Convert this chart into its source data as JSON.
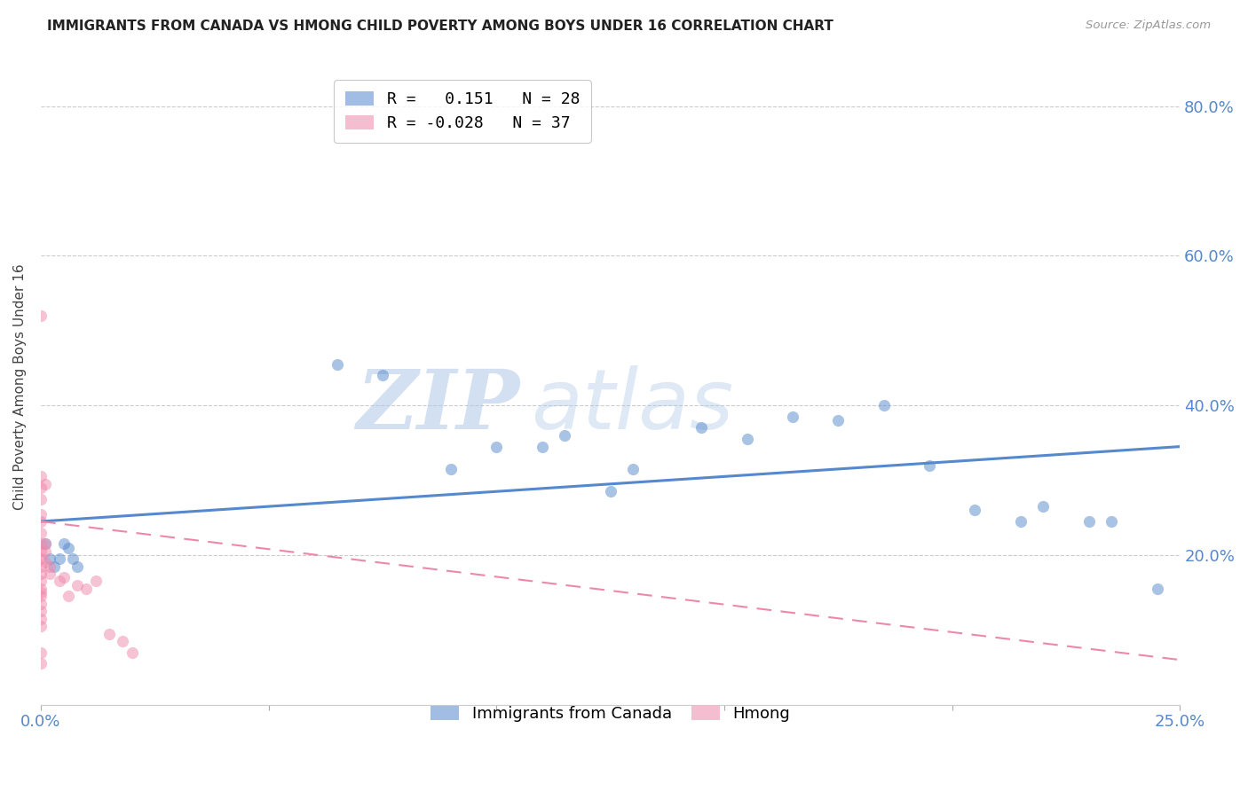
{
  "title": "IMMIGRANTS FROM CANADA VS HMONG CHILD POVERTY AMONG BOYS UNDER 16 CORRELATION CHART",
  "source": "Source: ZipAtlas.com",
  "ylabel": "Child Poverty Among Boys Under 16",
  "xlim": [
    0.0,
    0.25
  ],
  "ylim": [
    0.0,
    0.85
  ],
  "xticks": [
    0.0,
    0.05,
    0.1,
    0.15,
    0.2,
    0.25
  ],
  "yticks": [
    0.0,
    0.2,
    0.4,
    0.6,
    0.8
  ],
  "xticklabels": [
    "0.0%",
    "",
    "",
    "",
    "",
    "25.0%"
  ],
  "yticklabels": [
    "",
    "20.0%",
    "40.0%",
    "60.0%",
    "80.0%"
  ],
  "legend_entries": [
    {
      "label": "R =   0.151   N = 28",
      "color": "#6699cc"
    },
    {
      "label": "R = -0.028   N = 37",
      "color": "#ee88aa"
    }
  ],
  "canada_x": [
    0.001,
    0.002,
    0.003,
    0.004,
    0.005,
    0.006,
    0.007,
    0.008,
    0.065,
    0.075,
    0.09,
    0.1,
    0.11,
    0.115,
    0.125,
    0.13,
    0.145,
    0.155,
    0.165,
    0.175,
    0.185,
    0.195,
    0.205,
    0.215,
    0.22,
    0.23,
    0.235,
    0.245
  ],
  "canada_y": [
    0.215,
    0.195,
    0.185,
    0.195,
    0.215,
    0.21,
    0.195,
    0.185,
    0.455,
    0.44,
    0.315,
    0.345,
    0.345,
    0.36,
    0.285,
    0.315,
    0.37,
    0.355,
    0.385,
    0.38,
    0.4,
    0.32,
    0.26,
    0.245,
    0.265,
    0.245,
    0.245,
    0.155
  ],
  "hmong_x": [
    0.0,
    0.0,
    0.0,
    0.0,
    0.0,
    0.0,
    0.0,
    0.0,
    0.0,
    0.0,
    0.0,
    0.0,
    0.0,
    0.0,
    0.0,
    0.0,
    0.0,
    0.0,
    0.0,
    0.0,
    0.0,
    0.0,
    0.001,
    0.001,
    0.001,
    0.001,
    0.002,
    0.002,
    0.004,
    0.005,
    0.006,
    0.008,
    0.01,
    0.012,
    0.015,
    0.018,
    0.02
  ],
  "hmong_y": [
    0.52,
    0.305,
    0.29,
    0.275,
    0.255,
    0.245,
    0.23,
    0.215,
    0.205,
    0.195,
    0.185,
    0.175,
    0.165,
    0.155,
    0.15,
    0.145,
    0.135,
    0.125,
    0.115,
    0.105,
    0.07,
    0.055,
    0.295,
    0.215,
    0.205,
    0.19,
    0.185,
    0.175,
    0.165,
    0.17,
    0.145,
    0.16,
    0.155,
    0.165,
    0.095,
    0.085,
    0.07
  ],
  "canada_line_x": [
    0.0,
    0.25
  ],
  "canada_line_y": [
    0.245,
    0.345
  ],
  "hmong_line_x": [
    0.0,
    0.25
  ],
  "hmong_line_y": [
    0.245,
    0.06
  ],
  "canada_color": "#5588cc",
  "hmong_color": "#ee88aa",
  "scatter_alpha": 0.5,
  "scatter_size": 90,
  "watermark_zip": "ZIP",
  "watermark_atlas": "atlas",
  "background_color": "#ffffff",
  "grid_color": "#cccccc",
  "tick_label_color": "#5588cc"
}
